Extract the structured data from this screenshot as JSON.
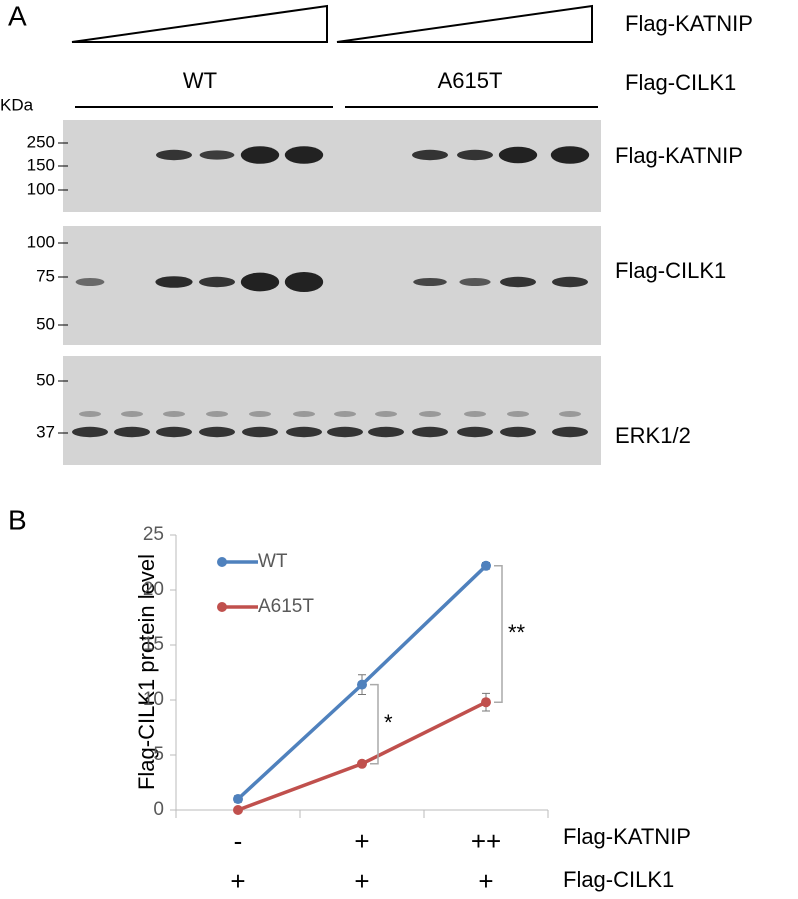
{
  "panel_a": {
    "label": "A",
    "wedge_label": "Flag-KATNIP",
    "group_label": "Flag-CILK1",
    "groups": [
      "WT",
      "A615T"
    ],
    "kda_label": "KDa",
    "blots": [
      {
        "name": "Flag-KATNIP",
        "markers": [
          "250",
          "150",
          "100"
        ]
      },
      {
        "name": "Flag-CILK1",
        "markers": [
          "100",
          "75",
          "50"
        ]
      },
      {
        "name": "ERK1/2",
        "markers": [
          "50",
          "37"
        ]
      }
    ]
  },
  "chart_data": {
    "type": "line",
    "panel_label": "B",
    "ylabel": "Flag-CILK1 protein level",
    "categories": [
      "-",
      "+",
      "++"
    ],
    "xlabel": "Flag-KATNIP",
    "second_row": {
      "label": "Flag-CILK1",
      "values": [
        "+",
        "+",
        "+"
      ]
    },
    "series": [
      {
        "name": "WT",
        "color": "#4f81bd",
        "values": [
          1,
          11.4,
          22.2
        ],
        "errors": [
          0.3,
          0.9,
          0.3
        ]
      },
      {
        "name": "A615T",
        "color": "#c0504d",
        "values": [
          0,
          4.2,
          9.8
        ],
        "errors": [
          0.2,
          0.2,
          0.8
        ]
      }
    ],
    "annotations": [
      "*",
      "**"
    ],
    "ylim": [
      0,
      25
    ],
    "yticks": [
      0,
      5,
      10,
      15,
      20,
      25
    ],
    "legend": "upper left"
  }
}
